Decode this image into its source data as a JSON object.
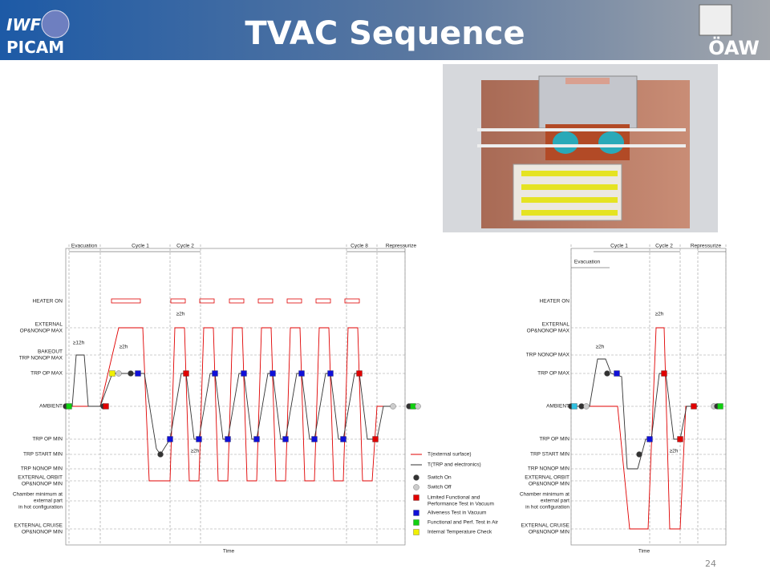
{
  "header": {
    "title": "TVAC Sequence",
    "logo_left": [
      "IWF",
      "PICAM"
    ],
    "logo_right": "ÖAW"
  },
  "left_diagram": {
    "phases": [
      "Evacuation",
      "Cycle 1",
      "Cycle 2",
      "Cycle 8",
      "Repressurize"
    ],
    "levels": [
      [
        "HEATER ON"
      ],
      [
        "EXTERNAL",
        "OP&NONOP MAX"
      ],
      [
        "BAKEOUT",
        "TRP NONOP MAX"
      ],
      [
        "TRP OP MAX"
      ],
      [
        "AMBIENT"
      ],
      [
        "TRP OP MIN"
      ],
      [
        "TRP START MIN"
      ],
      [
        "TRP NONOP MIN"
      ],
      [
        "EXTERNAL ORBIT",
        "OP&NONOP MIN"
      ],
      [
        "Chamber minimum at",
        "external part",
        "in hot configuration"
      ],
      [
        "EXTERNAL CRUISE",
        "OP&NONOP MIN"
      ]
    ],
    "annotations": [
      "≥12h",
      "≥2h",
      "≥2h",
      "≥2h"
    ],
    "x_label": "Time"
  },
  "legend": [
    [
      "T(external surface)"
    ],
    [
      "T(TRP and electronics)"
    ],
    [
      "Switch On"
    ],
    [
      "Switch Off"
    ],
    [
      "Limited Functional and",
      "Performance Test in Vacuum"
    ],
    [
      "Aliveness Test in Vacuum"
    ],
    [
      "Functional and Perf. Test in Air"
    ],
    [
      "Internal Temperature Check"
    ]
  ],
  "right_diagram": {
    "phases": [
      "Cycle 1",
      "Cycle 2",
      "Repressurize",
      "Evacuation"
    ],
    "levels": [
      [
        "HEATER ON"
      ],
      [
        "EXTERNAL",
        "OP&NONOP MAX"
      ],
      [
        "TRP NONOP MAX"
      ],
      [
        "TRP OP MAX"
      ],
      [
        "AMBIENT"
      ],
      [
        "TRP OP MIN"
      ],
      [
        "TRP START MIN"
      ],
      [
        "TRP NONOP MIN"
      ],
      [
        "EXTERNAL ORBIT",
        "OP&NONOP MIN"
      ],
      [
        "Chamber minimum at",
        "external part",
        "in hot configuration"
      ],
      [
        "EXTERNAL CRUISE",
        "OP&NONOP MIN"
      ]
    ],
    "annotations": [
      "≥2h",
      "≥2h",
      "≥2h"
    ],
    "x_label": "Time"
  },
  "page_number": "24"
}
